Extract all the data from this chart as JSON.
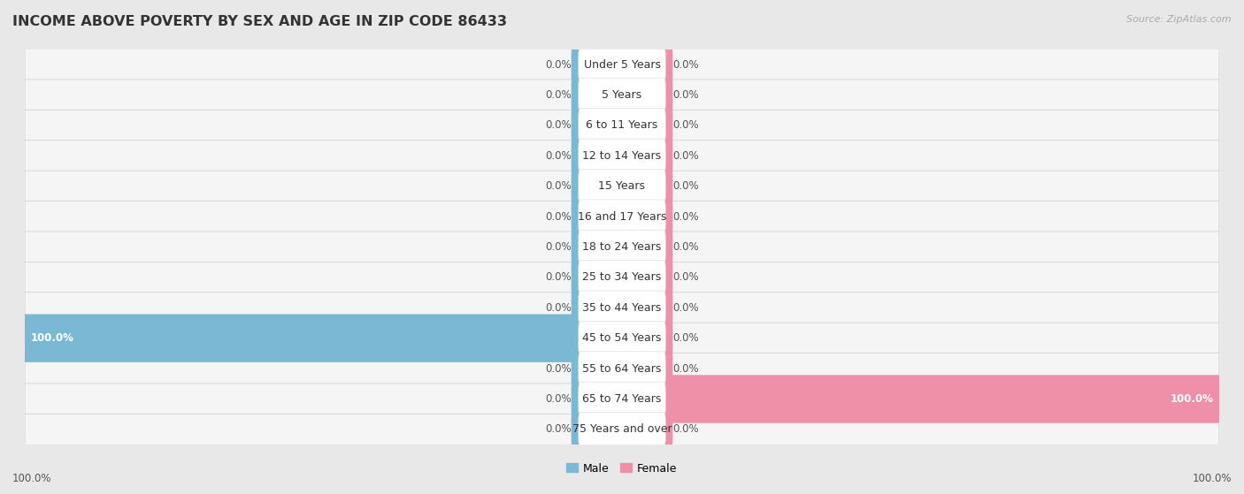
{
  "title": "INCOME ABOVE POVERTY BY SEX AND AGE IN ZIP CODE 86433",
  "source": "Source: ZipAtlas.com",
  "categories": [
    "Under 5 Years",
    "5 Years",
    "6 to 11 Years",
    "12 to 14 Years",
    "15 Years",
    "16 and 17 Years",
    "18 to 24 Years",
    "25 to 34 Years",
    "35 to 44 Years",
    "45 to 54 Years",
    "55 to 64 Years",
    "65 to 74 Years",
    "75 Years and over"
  ],
  "male_values": [
    0.0,
    0.0,
    0.0,
    0.0,
    0.0,
    0.0,
    0.0,
    0.0,
    0.0,
    100.0,
    0.0,
    0.0,
    0.0
  ],
  "female_values": [
    0.0,
    0.0,
    0.0,
    0.0,
    0.0,
    0.0,
    0.0,
    0.0,
    0.0,
    0.0,
    0.0,
    100.0,
    0.0
  ],
  "male_color": "#7BB8D4",
  "female_color": "#F090A8",
  "male_label": "Male",
  "female_label": "Female",
  "background_color": "#e8e8e8",
  "row_bg_color": "#f5f5f5",
  "row_alt_color": "#ebebeb",
  "xlim": 100,
  "min_bar_width": 8,
  "title_fontsize": 11.5,
  "label_fontsize": 9,
  "annotation_fontsize": 8.5,
  "legend_fontsize": 9
}
